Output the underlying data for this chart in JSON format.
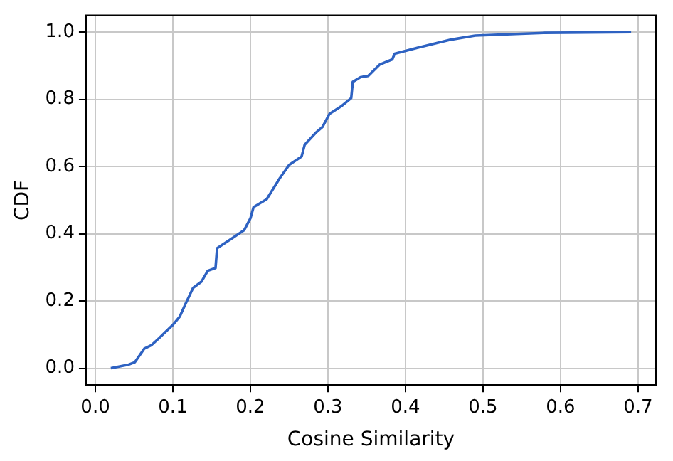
{
  "chart_data": {
    "type": "line",
    "xlabel": "Cosine Similarity",
    "ylabel": "CDF",
    "grid": true,
    "marker": "none",
    "line_style": "solid",
    "xlim": [
      -0.012,
      0.723
    ],
    "ylim": [
      -0.05,
      1.05
    ],
    "xticks": [
      {
        "value": 0,
        "label": "0.0"
      },
      0.1,
      0.2,
      0.3,
      0.4,
      0.5,
      0.6,
      0.7
    ],
    "yticks": [
      {
        "value": 0,
        "label": "0.0"
      },
      0.2,
      0.4,
      0.6,
      0.8,
      {
        "value": 1,
        "label": "1.0"
      }
    ],
    "series": [
      {
        "color": "#2e62c2",
        "x": [
          0.02,
          0.042,
          0.051,
          0.063,
          0.072,
          0.082,
          0.09,
          0.1,
          0.109,
          0.115,
          0.126,
          0.137,
          0.145,
          0.155,
          0.157,
          0.174,
          0.192,
          0.2,
          0.204,
          0.221,
          0.238,
          0.25,
          0.266,
          0.27,
          0.284,
          0.293,
          0.302,
          0.318,
          0.33,
          0.332,
          0.342,
          0.352,
          0.367,
          0.383,
          0.386,
          0.416,
          0.459,
          0.49,
          0.579,
          0.691
        ],
        "values": [
          0,
          0.01,
          0.018,
          0.058,
          0.068,
          0.089,
          0.107,
          0.129,
          0.154,
          0.185,
          0.239,
          0.258,
          0.29,
          0.298,
          0.357,
          0.383,
          0.411,
          0.446,
          0.479,
          0.503,
          0.566,
          0.605,
          0.63,
          0.665,
          0.7,
          0.718,
          0.757,
          0.781,
          0.804,
          0.852,
          0.866,
          0.87,
          0.904,
          0.919,
          0.936,
          0.954,
          0.978,
          0.99,
          0.998,
          1.0
        ]
      }
    ]
  }
}
